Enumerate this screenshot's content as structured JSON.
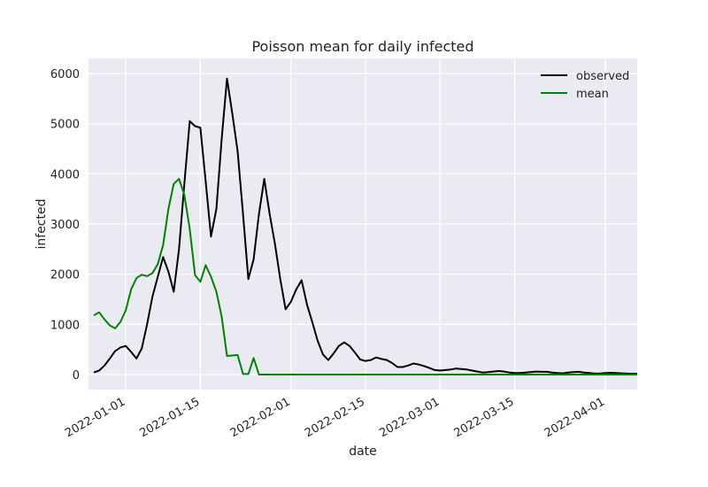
{
  "chart_data": {
    "type": "line",
    "title": "Poisson mean for daily infected",
    "xlabel": "date",
    "ylabel": "infected",
    "x_range": [
      "2021-12-25",
      "2022-04-07"
    ],
    "ylim": [
      -300,
      6300
    ],
    "grid": true,
    "legend_position": "top-right",
    "x_ticks": [
      "2022-01-01",
      "2022-01-15",
      "2022-02-01",
      "2022-02-15",
      "2022-03-01",
      "2022-03-15",
      "2022-04-01"
    ],
    "y_ticks": [
      0,
      1000,
      2000,
      3000,
      4000,
      5000,
      6000
    ],
    "series": [
      {
        "name": "observed",
        "color": "#000000",
        "points": [
          [
            "2021-12-26",
            40
          ],
          [
            "2021-12-27",
            80
          ],
          [
            "2021-12-28",
            180
          ],
          [
            "2021-12-29",
            320
          ],
          [
            "2021-12-30",
            470
          ],
          [
            "2021-12-31",
            540
          ],
          [
            "2022-01-01",
            570
          ],
          [
            "2022-01-02",
            450
          ],
          [
            "2022-01-03",
            320
          ],
          [
            "2022-01-04",
            520
          ],
          [
            "2022-01-05",
            1000
          ],
          [
            "2022-01-06",
            1550
          ],
          [
            "2022-01-07",
            1950
          ],
          [
            "2022-01-08",
            2340
          ],
          [
            "2022-01-09",
            2050
          ],
          [
            "2022-01-10",
            1650
          ],
          [
            "2022-01-11",
            2500
          ],
          [
            "2022-01-12",
            3800
          ],
          [
            "2022-01-13",
            5050
          ],
          [
            "2022-01-14",
            4950
          ],
          [
            "2022-01-15",
            4920
          ],
          [
            "2022-01-16",
            3850
          ],
          [
            "2022-01-17",
            2750
          ],
          [
            "2022-01-18",
            3300
          ],
          [
            "2022-01-19",
            4700
          ],
          [
            "2022-01-20",
            5900
          ],
          [
            "2022-01-21",
            5200
          ],
          [
            "2022-01-22",
            4450
          ],
          [
            "2022-01-23",
            3200
          ],
          [
            "2022-01-24",
            1900
          ],
          [
            "2022-01-25",
            2300
          ],
          [
            "2022-01-26",
            3200
          ],
          [
            "2022-01-27",
            3900
          ],
          [
            "2022-01-28",
            3200
          ],
          [
            "2022-01-29",
            2600
          ],
          [
            "2022-01-30",
            1900
          ],
          [
            "2022-01-31",
            1300
          ],
          [
            "2022-02-01",
            1450
          ],
          [
            "2022-02-02",
            1700
          ],
          [
            "2022-02-03",
            1880
          ],
          [
            "2022-02-04",
            1400
          ],
          [
            "2022-02-05",
            1050
          ],
          [
            "2022-02-06",
            680
          ],
          [
            "2022-02-07",
            400
          ],
          [
            "2022-02-08",
            290
          ],
          [
            "2022-02-09",
            420
          ],
          [
            "2022-02-10",
            570
          ],
          [
            "2022-02-11",
            640
          ],
          [
            "2022-02-12",
            570
          ],
          [
            "2022-02-13",
            440
          ],
          [
            "2022-02-14",
            300
          ],
          [
            "2022-02-15",
            270
          ],
          [
            "2022-02-16",
            290
          ],
          [
            "2022-02-17",
            340
          ],
          [
            "2022-02-18",
            310
          ],
          [
            "2022-02-19",
            290
          ],
          [
            "2022-02-20",
            230
          ],
          [
            "2022-02-21",
            150
          ],
          [
            "2022-02-22",
            150
          ],
          [
            "2022-02-23",
            180
          ],
          [
            "2022-02-24",
            220
          ],
          [
            "2022-02-25",
            200
          ],
          [
            "2022-02-26",
            170
          ],
          [
            "2022-02-27",
            130
          ],
          [
            "2022-02-28",
            90
          ],
          [
            "2022-03-01",
            80
          ],
          [
            "2022-03-02",
            90
          ],
          [
            "2022-03-03",
            100
          ],
          [
            "2022-03-04",
            120
          ],
          [
            "2022-03-05",
            110
          ],
          [
            "2022-03-06",
            100
          ],
          [
            "2022-03-07",
            80
          ],
          [
            "2022-03-08",
            60
          ],
          [
            "2022-03-09",
            40
          ],
          [
            "2022-03-10",
            50
          ],
          [
            "2022-03-11",
            60
          ],
          [
            "2022-03-12",
            70
          ],
          [
            "2022-03-13",
            60
          ],
          [
            "2022-03-14",
            40
          ],
          [
            "2022-03-15",
            30
          ],
          [
            "2022-03-16",
            30
          ],
          [
            "2022-03-17",
            40
          ],
          [
            "2022-03-18",
            50
          ],
          [
            "2022-03-19",
            60
          ],
          [
            "2022-03-20",
            55
          ],
          [
            "2022-03-21",
            55
          ],
          [
            "2022-03-22",
            40
          ],
          [
            "2022-03-23",
            30
          ],
          [
            "2022-03-24",
            25
          ],
          [
            "2022-03-25",
            40
          ],
          [
            "2022-03-26",
            50
          ],
          [
            "2022-03-27",
            55
          ],
          [
            "2022-03-28",
            40
          ],
          [
            "2022-03-29",
            30
          ],
          [
            "2022-03-30",
            20
          ],
          [
            "2022-03-31",
            20
          ],
          [
            "2022-04-01",
            30
          ],
          [
            "2022-04-02",
            35
          ],
          [
            "2022-04-03",
            30
          ],
          [
            "2022-04-04",
            25
          ],
          [
            "2022-04-05",
            20
          ],
          [
            "2022-04-06",
            15
          ],
          [
            "2022-04-07",
            15
          ]
        ]
      },
      {
        "name": "mean",
        "color": "#008000",
        "points": [
          [
            "2021-12-26",
            1180
          ],
          [
            "2021-12-27",
            1240
          ],
          [
            "2021-12-28",
            1100
          ],
          [
            "2021-12-29",
            980
          ],
          [
            "2021-12-30",
            920
          ],
          [
            "2021-12-31",
            1050
          ],
          [
            "2022-01-01",
            1280
          ],
          [
            "2022-01-02",
            1700
          ],
          [
            "2022-01-03",
            1920
          ],
          [
            "2022-01-04",
            1990
          ],
          [
            "2022-01-05",
            1960
          ],
          [
            "2022-01-06",
            2020
          ],
          [
            "2022-01-07",
            2200
          ],
          [
            "2022-01-08",
            2580
          ],
          [
            "2022-01-09",
            3300
          ],
          [
            "2022-01-10",
            3800
          ],
          [
            "2022-01-11",
            3900
          ],
          [
            "2022-01-12",
            3580
          ],
          [
            "2022-01-13",
            2900
          ],
          [
            "2022-01-14",
            1980
          ],
          [
            "2022-01-15",
            1850
          ],
          [
            "2022-01-16",
            2180
          ],
          [
            "2022-01-17",
            1950
          ],
          [
            "2022-01-18",
            1650
          ],
          [
            "2022-01-19",
            1150
          ],
          [
            "2022-01-20",
            370
          ],
          [
            "2022-01-21",
            380
          ],
          [
            "2022-01-22",
            390
          ],
          [
            "2022-01-23",
            10
          ],
          [
            "2022-01-24",
            10
          ],
          [
            "2022-01-25",
            330
          ],
          [
            "2022-01-26",
            0
          ],
          [
            "2022-02-01",
            0
          ],
          [
            "2022-02-15",
            0
          ],
          [
            "2022-03-01",
            0
          ],
          [
            "2022-03-15",
            0
          ],
          [
            "2022-04-01",
            0
          ],
          [
            "2022-04-07",
            0
          ]
        ]
      }
    ]
  }
}
